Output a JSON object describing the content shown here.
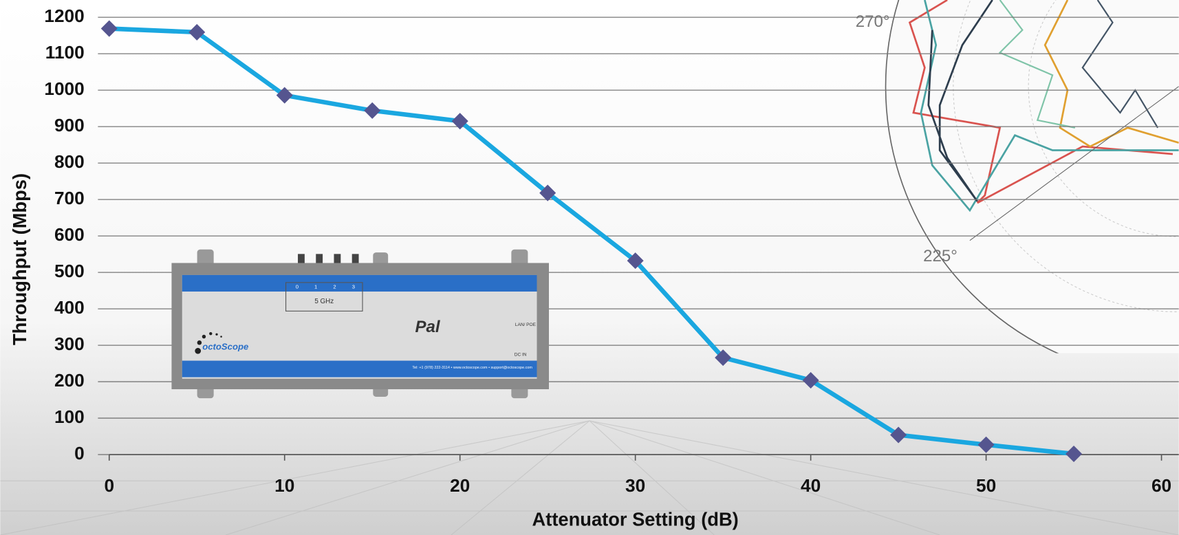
{
  "chart_data": {
    "type": "line",
    "x_label": "Attenuator Setting (dB)",
    "y_label": "Throughput (Mbps)",
    "x": [
      0,
      5,
      10,
      15,
      20,
      25,
      30,
      35,
      40,
      45,
      50,
      55
    ],
    "series": [
      {
        "color": "#1aa7e0",
        "marker_color": "#55558f",
        "values": [
          1169,
          1159,
          986,
          944,
          915,
          718,
          532,
          266,
          204,
          54,
          27,
          2
        ]
      }
    ],
    "xlim": [
      0,
      60
    ],
    "xticks": [
      0,
      10,
      20,
      30,
      40,
      50,
      60
    ],
    "ylim": [
      0,
      1200
    ],
    "yticks": [
      0,
      100,
      200,
      300,
      400,
      500,
      600,
      700,
      800,
      900,
      1000,
      1100,
      1200
    ],
    "grid": true
  },
  "device_photo": {
    "band": "5 GHz",
    "ports": [
      "0",
      "1",
      "2",
      "3"
    ],
    "brand": "octoScope",
    "model": "Pal",
    "lan": "LAN/ POE",
    "dc": "DC IN",
    "contact": "Tel: +1 (978) 222-3114 • www.octoscope.com • support@octoscope.com"
  },
  "polar_inset": {
    "angles": [
      "270°",
      "225°"
    ]
  }
}
